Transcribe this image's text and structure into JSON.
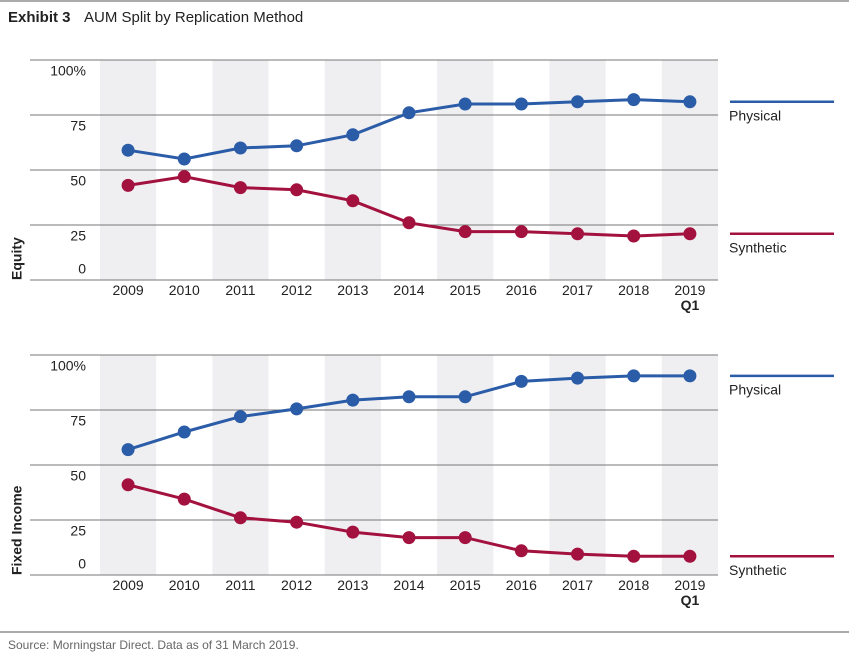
{
  "title_bold": "Exhibit 3",
  "title": "AUM Split by Replication Method",
  "source": "Source: Morningstar Direct. Data as of 31 March 2019.",
  "chart_data": [
    {
      "type": "line",
      "y_label": "Equity",
      "categories": [
        "2009",
        "2010",
        "2011",
        "2012",
        "2013",
        "2014",
        "2015",
        "2016",
        "2017",
        "2018",
        "2019\nQ1"
      ],
      "ylim": [
        0,
        100
      ],
      "yticks": [
        0,
        25,
        50,
        75,
        {
          "value": 100,
          "label": "100%"
        }
      ],
      "series": [
        {
          "name": "Physical",
          "color": "#2b5ca8",
          "values": [
            59,
            55,
            60,
            61,
            66,
            76,
            80,
            80,
            81,
            82,
            81
          ]
        },
        {
          "name": "Synthetic",
          "color": "#a3123f",
          "values": [
            43,
            47,
            42,
            41,
            36,
            26,
            22,
            22,
            21,
            20,
            21
          ]
        }
      ]
    },
    {
      "type": "line",
      "y_label": "Fixed Income",
      "categories": [
        "2009",
        "2010",
        "2011",
        "2012",
        "2013",
        "2014",
        "2015",
        "2016",
        "2017",
        "2018",
        "2019\nQ1"
      ],
      "ylim": [
        0,
        100
      ],
      "yticks": [
        0,
        25,
        50,
        75,
        {
          "value": 100,
          "label": "100%"
        }
      ],
      "series": [
        {
          "name": "Physical",
          "color": "#2b5ca8",
          "values": [
            57,
            65,
            72,
            75.5,
            79.5,
            81,
            81,
            88,
            89.5,
            90.5,
            90.5
          ]
        },
        {
          "name": "Synthetic",
          "color": "#a3123f",
          "values": [
            41,
            34.5,
            26,
            24,
            19.5,
            17,
            17,
            11,
            9.5,
            8.5,
            8.5
          ]
        }
      ]
    }
  ]
}
